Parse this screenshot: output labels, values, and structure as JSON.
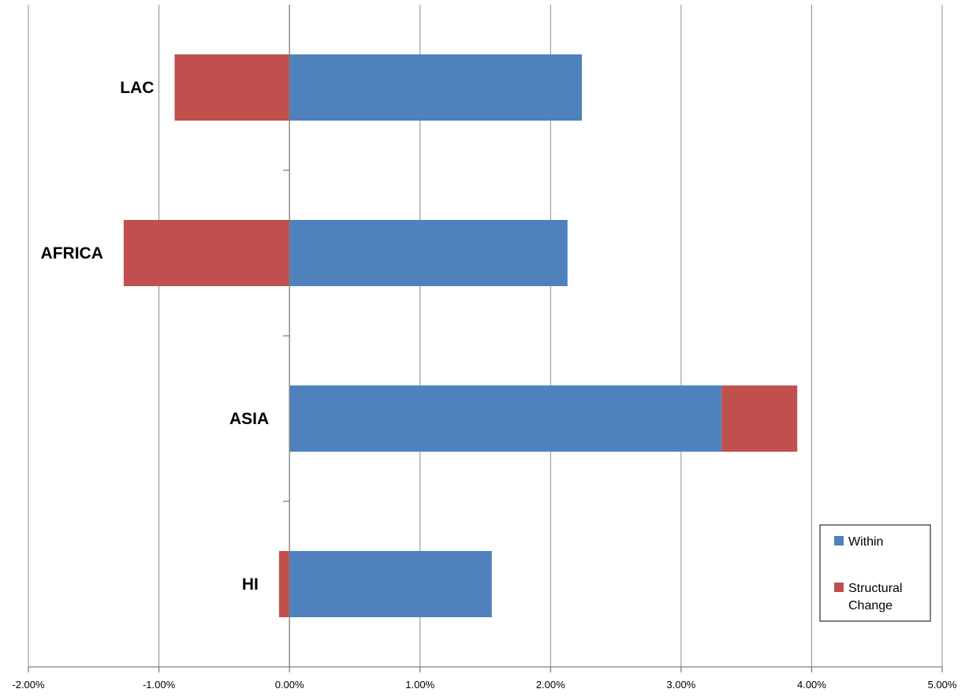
{
  "chart_data": {
    "type": "bar",
    "orientation": "horizontal",
    "stacked": true,
    "categories": [
      "LAC",
      "AFRICA",
      "ASIA",
      "HI"
    ],
    "series": [
      {
        "name": "Within",
        "color": "#4F81BD",
        "values": [
          2.24,
          2.13,
          3.31,
          1.55
        ]
      },
      {
        "name": "Structural Change",
        "color": "#C0504D",
        "values": [
          -0.88,
          -1.27,
          0.58,
          -0.08
        ]
      }
    ],
    "xlim": [
      -2,
      5
    ],
    "xticks": [
      "-2.00%",
      "-1.00%",
      "0.00%",
      "1.00%",
      "2.00%",
      "3.00%",
      "4.00%",
      "5.00%"
    ],
    "grid": true,
    "legend_position": "bottom-right",
    "title": "",
    "xlabel": "",
    "ylabel": ""
  }
}
